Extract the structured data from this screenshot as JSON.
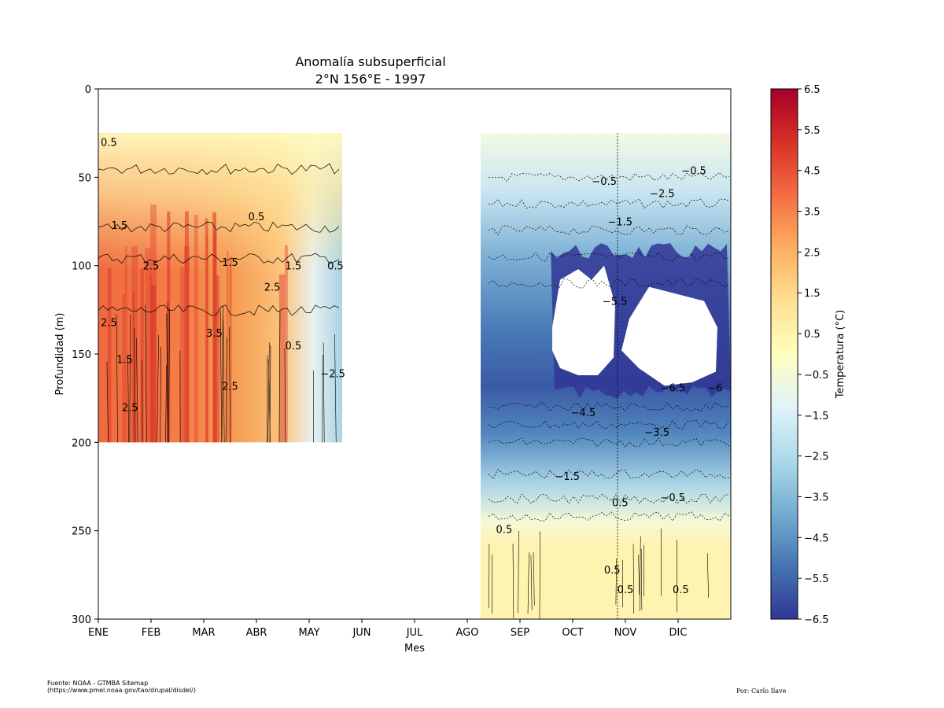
{
  "chart_data": {
    "type": "heatmap",
    "title": "Anomalía subsuperficial",
    "subtitle": "2°N 156°E - 1997",
    "xlabel": "Mes",
    "ylabel": "Profundidad (m)",
    "x_ticks": [
      "ENE",
      "FEB",
      "MAR",
      "ABR",
      "MAY",
      "JUN",
      "JUL",
      "AGO",
      "SEP",
      "OCT",
      "NOV",
      "DIC"
    ],
    "y_ticks": [
      0,
      50,
      100,
      150,
      200,
      250,
      300
    ],
    "ylim": [
      300,
      0
    ],
    "y_inverted": true,
    "colorbar": {
      "label": "Temperatura (°C)",
      "range": [
        -6.5,
        6.5
      ],
      "ticks": [
        "6.5",
        "5.5",
        "4.5",
        "3.5",
        "2.5",
        "1.5",
        "0.5",
        "−0.5",
        "−1.5",
        "−2.5",
        "−3.5",
        "−4.5",
        "−5.5",
        "−6.5"
      ],
      "colormap": "RdYlBu_r"
    },
    "data_blocks": [
      {
        "period": "ENE–MAY",
        "depth_range_m": [
          25,
          200
        ],
        "anomaly": "positive",
        "max_approx": 4.5
      },
      {
        "period": "AGO–DIC",
        "depth_range_m": [
          25,
          300
        ],
        "anomaly": "negative",
        "min_approx": -6.5
      }
    ],
    "contour_labels": [
      {
        "text": "0.5",
        "x": 0.2,
        "y": 30
      },
      {
        "text": "1.5",
        "x": 0.4,
        "y": 77
      },
      {
        "text": "2.5",
        "x": 1.0,
        "y": 100
      },
      {
        "text": "2.5",
        "x": 0.2,
        "y": 132
      },
      {
        "text": "0.5",
        "x": 3.0,
        "y": 72
      },
      {
        "text": "1.5",
        "x": 2.5,
        "y": 98
      },
      {
        "text": "1.5",
        "x": 3.7,
        "y": 100
      },
      {
        "text": "2.5",
        "x": 3.3,
        "y": 112
      },
      {
        "text": "3.5",
        "x": 2.2,
        "y": 138
      },
      {
        "text": "1.5",
        "x": 0.5,
        "y": 153
      },
      {
        "text": "2.5",
        "x": 2.5,
        "y": 168
      },
      {
        "text": "2.5",
        "x": 0.6,
        "y": 180
      },
      {
        "text": "0.5",
        "x": 4.5,
        "y": 100
      },
      {
        "text": "−2.5",
        "x": 4.45,
        "y": 161
      },
      {
        "text": "0.5",
        "x": 3.7,
        "y": 145
      },
      {
        "text": "−0.5",
        "x": 9.6,
        "y": 52
      },
      {
        "text": "−0.5",
        "x": 11.3,
        "y": 46
      },
      {
        "text": "−2.5",
        "x": 10.7,
        "y": 59
      },
      {
        "text": "−1.5",
        "x": 9.9,
        "y": 75
      },
      {
        "text": "−5.5",
        "x": 9.8,
        "y": 120
      },
      {
        "text": "−6.5",
        "x": 10.9,
        "y": 169
      },
      {
        "text": "−6",
        "x": 11.7,
        "y": 169
      },
      {
        "text": "−4.5",
        "x": 9.2,
        "y": 183
      },
      {
        "text": "−3.5",
        "x": 10.6,
        "y": 194
      },
      {
        "text": "−1.5",
        "x": 8.9,
        "y": 219
      },
      {
        "text": "0.5",
        "x": 9.9,
        "y": 234
      },
      {
        "text": "−0.5",
        "x": 10.9,
        "y": 231
      },
      {
        "text": "0.5",
        "x": 7.7,
        "y": 249
      },
      {
        "text": "0.5",
        "x": 9.75,
        "y": 272
      },
      {
        "text": "0.5",
        "x": 10.0,
        "y": 283
      },
      {
        "text": "0.5",
        "x": 11.05,
        "y": 283
      }
    ]
  },
  "footer": {
    "source_line1": "Fuente: NOAA - GTMBA Sitemap",
    "source_line2": "(https://www.pmel.noaa.gov/tao/drupal/disdel/)",
    "author": "Por: Carlo Ilave"
  }
}
